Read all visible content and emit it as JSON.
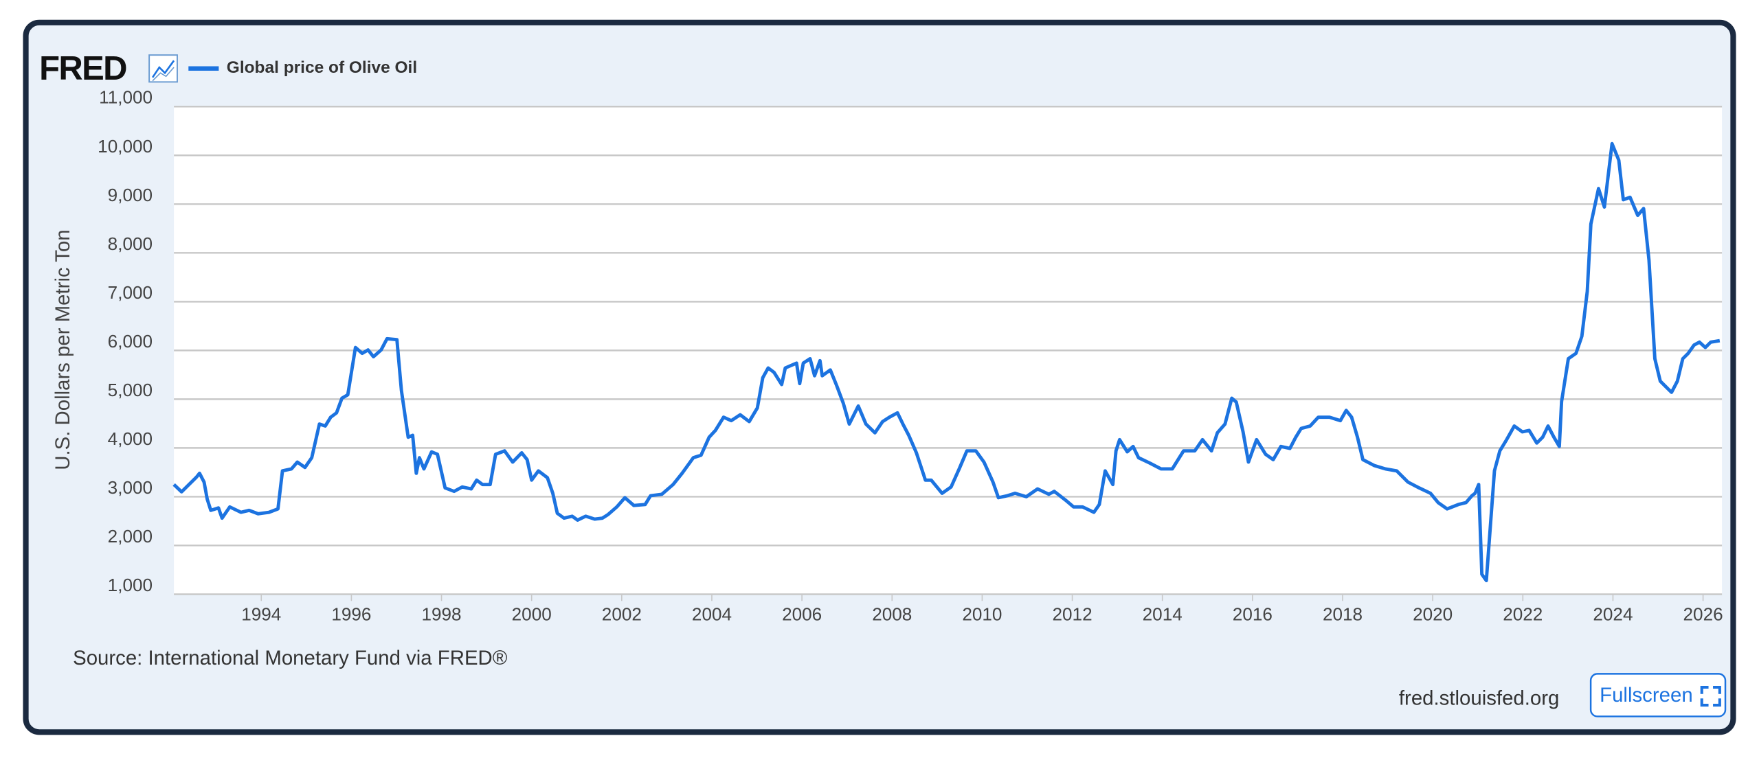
{
  "chart_data": {
    "type": "line",
    "logo": "FRED",
    "ylabel": "U.S. Dollars per Metric Ton",
    "source": "Source: International Monetary Fund via FRED®",
    "site": "fred.stlouisfed.org",
    "button": "Fullscreen",
    "grid": true,
    "xlim": [
      1992.06,
      2026.42
    ],
    "xticks": [
      1994,
      1996,
      1998,
      2000,
      2002,
      2004,
      2006,
      2008,
      2010,
      2012,
      2014,
      2016,
      2018,
      2020,
      2022,
      2024,
      2026
    ],
    "ylim": [
      1000,
      11000
    ],
    "yticks": [
      {
        "value": 1000,
        "label": "1,000"
      },
      {
        "value": 2000,
        "label": "2,000"
      },
      {
        "value": 3000,
        "label": "3,000"
      },
      {
        "value": 4000,
        "label": "4,000"
      },
      {
        "value": 5000,
        "label": "5,000"
      },
      {
        "value": 6000,
        "label": "6,000"
      },
      {
        "value": 7000,
        "label": "7,000"
      },
      {
        "value": 8000,
        "label": "8,000"
      },
      {
        "value": 9000,
        "label": "9,000"
      },
      {
        "value": 10000,
        "label": "10,000"
      },
      {
        "value": 11000,
        "label": "11,000"
      }
    ],
    "x": [
      1992.06,
      1992.23,
      1992.56,
      1992.63,
      1992.73,
      1992.8,
      1992.88,
      1993.05,
      1993.13,
      1993.3,
      1993.55,
      1993.73,
      1993.93,
      1994.17,
      1994.37,
      1994.47,
      1994.67,
      1994.8,
      1994.97,
      1995.12,
      1995.29,
      1995.42,
      1995.54,
      1995.67,
      1995.79,
      1995.92,
      1996.09,
      1996.24,
      1996.37,
      1996.49,
      1996.66,
      1996.79,
      1997.01,
      1997.11,
      1997.26,
      1997.36,
      1997.44,
      1997.51,
      1997.61,
      1997.78,
      1997.91,
      1998.08,
      1998.28,
      1998.46,
      1998.66,
      1998.78,
      1998.91,
      1999.08,
      1999.2,
      1999.4,
      1999.58,
      1999.78,
      1999.9,
      2000.0,
      2000.15,
      2000.35,
      2000.47,
      2000.57,
      2000.72,
      2000.9,
      2001.02,
      2001.2,
      2001.4,
      2001.57,
      2001.69,
      2001.89,
      2002.07,
      2002.27,
      2002.52,
      2002.64,
      2002.89,
      2003.14,
      2003.34,
      2003.59,
      2003.76,
      2003.94,
      2004.08,
      2004.26,
      2004.43,
      2004.63,
      2004.83,
      2005.01,
      2005.13,
      2005.25,
      2005.38,
      2005.55,
      2005.63,
      2005.88,
      2005.95,
      2006.03,
      2006.18,
      2006.28,
      2006.4,
      2006.45,
      2006.63,
      2006.77,
      2006.92,
      2007.05,
      2007.25,
      2007.42,
      2007.62,
      2007.79,
      2007.94,
      2008.12,
      2008.24,
      2008.37,
      2008.54,
      2008.74,
      2008.87,
      2009.11,
      2009.31,
      2009.49,
      2009.66,
      2009.86,
      2010.04,
      2010.24,
      2010.36,
      2010.56,
      2010.73,
      2010.98,
      2011.23,
      2011.48,
      2011.6,
      2011.85,
      2012.03,
      2012.23,
      2012.48,
      2012.6,
      2012.73,
      2012.9,
      2012.97,
      2013.05,
      2013.22,
      2013.35,
      2013.47,
      2013.72,
      2013.97,
      2014.22,
      2014.47,
      2014.72,
      2014.89,
      2015.09,
      2015.22,
      2015.39,
      2015.54,
      2015.64,
      2015.79,
      2015.91,
      2016.09,
      2016.29,
      2016.46,
      2016.63,
      2016.83,
      2016.96,
      2017.08,
      2017.28,
      2017.46,
      2017.71,
      2017.95,
      2018.08,
      2018.2,
      2018.33,
      2018.45,
      2018.7,
      2018.95,
      2019.2,
      2019.45,
      2019.7,
      2019.95,
      2020.12,
      2020.32,
      2020.57,
      2020.74,
      2020.87,
      2020.94,
      2021.02,
      2021.09,
      2021.19,
      2021.37,
      2021.49,
      2021.64,
      2021.81,
      2021.99,
      2022.14,
      2022.31,
      2022.44,
      2022.56,
      2022.69,
      2022.81,
      2022.86,
      2023.01,
      2023.18,
      2023.31,
      2023.43,
      2023.51,
      2023.68,
      2023.81,
      2023.98,
      2024.13,
      2024.23,
      2024.38,
      2024.55,
      2024.68,
      2024.8,
      2024.93,
      2025.05,
      2025.18,
      2025.3,
      2025.43,
      2025.55,
      2025.67,
      2025.8,
      2025.92,
      2026.05,
      2026.17,
      2026.37
    ],
    "series": [
      {
        "name": "Global price of Olive Oil",
        "color": "#1c73e0",
        "values": [
          3250,
          3100,
          3400,
          3480,
          3300,
          2950,
          2720,
          2770,
          2560,
          2790,
          2680,
          2720,
          2650,
          2680,
          2750,
          3530,
          3570,
          3710,
          3600,
          3800,
          4490,
          4450,
          4630,
          4720,
          5020,
          5090,
          6060,
          5940,
          6010,
          5870,
          6010,
          6240,
          6220,
          5180,
          4220,
          4260,
          3480,
          3800,
          3570,
          3920,
          3870,
          3180,
          3110,
          3200,
          3160,
          3340,
          3250,
          3250,
          3870,
          3940,
          3710,
          3900,
          3760,
          3340,
          3530,
          3390,
          3070,
          2660,
          2560,
          2600,
          2520,
          2600,
          2540,
          2560,
          2630,
          2790,
          2980,
          2820,
          2840,
          3020,
          3050,
          3250,
          3480,
          3800,
          3850,
          4220,
          4360,
          4630,
          4560,
          4680,
          4540,
          4820,
          5440,
          5640,
          5550,
          5300,
          5640,
          5740,
          5320,
          5740,
          5830,
          5480,
          5790,
          5480,
          5600,
          5280,
          4910,
          4490,
          4860,
          4490,
          4310,
          4540,
          4630,
          4720,
          4490,
          4260,
          3900,
          3340,
          3340,
          3070,
          3200,
          3570,
          3940,
          3940,
          3710,
          3300,
          2980,
          3020,
          3070,
          3000,
          3160,
          3050,
          3110,
          2930,
          2790,
          2790,
          2680,
          2840,
          3530,
          3250,
          3940,
          4170,
          3920,
          4030,
          3800,
          3690,
          3570,
          3570,
          3940,
          3940,
          4170,
          3940,
          4310,
          4490,
          5020,
          4940,
          4330,
          3710,
          4170,
          3870,
          3760,
          4030,
          3990,
          4220,
          4400,
          4450,
          4630,
          4630,
          4560,
          4770,
          4630,
          4220,
          3760,
          3640,
          3570,
          3530,
          3300,
          3180,
          3070,
          2880,
          2750,
          2840,
          2880,
          3020,
          3070,
          3250,
          1410,
          1280,
          3530,
          3940,
          4170,
          4450,
          4330,
          4360,
          4100,
          4220,
          4450,
          4220,
          4030,
          4950,
          5830,
          5940,
          6290,
          7210,
          8590,
          9320,
          8940,
          10240,
          9900,
          9090,
          9140,
          8770,
          8910,
          7850,
          5830,
          5370,
          5250,
          5140,
          5370,
          5830,
          5940,
          6110,
          6170,
          6060,
          6170,
          6200
        ]
      }
    ]
  }
}
